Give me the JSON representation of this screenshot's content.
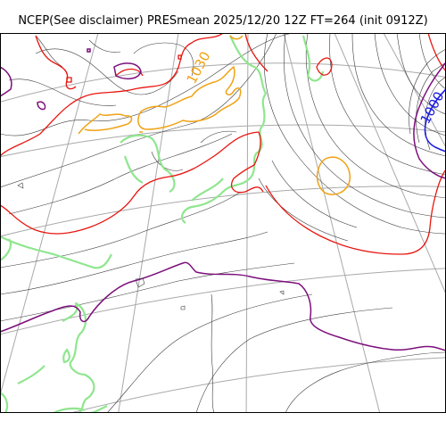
{
  "title": "NCEP(See disclaimer) PRESmean 2025/12/20 12Z FT=264 (init 0912Z)",
  "contour_labels": [
    {
      "text": "1030",
      "color": "#f0a214",
      "data-name": "label-1030"
    },
    {
      "text": "1000",
      "color": "#1f1fe0",
      "data-name": "label-1000"
    }
  ],
  "colors": {
    "isobar_1000": "#1f1fe0",
    "isobar_1010": "#7c0f7c",
    "isobar_1020": "#e8150f",
    "isobar_1030": "#f0a214",
    "coastline": "#8fe68f",
    "graticule": "#a9a9a9",
    "isobar_minor": "#3c3c3c"
  }
}
